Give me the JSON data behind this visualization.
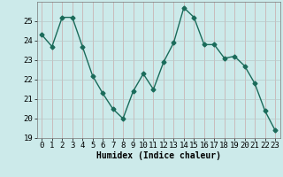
{
  "x": [
    0,
    1,
    2,
    3,
    4,
    5,
    6,
    7,
    8,
    9,
    10,
    11,
    12,
    13,
    14,
    15,
    16,
    17,
    18,
    19,
    20,
    21,
    22,
    23
  ],
  "y": [
    24.3,
    23.7,
    25.2,
    25.2,
    23.7,
    22.2,
    21.3,
    20.5,
    20.0,
    21.4,
    22.3,
    21.5,
    22.9,
    23.9,
    25.7,
    25.2,
    23.8,
    23.8,
    23.1,
    23.2,
    22.7,
    21.8,
    20.4,
    19.4
  ],
  "line_color": "#1a6b5a",
  "marker": "D",
  "marker_size": 2.5,
  "bg_color": "#cceaea",
  "grid_color_v": "#c8a8a8",
  "grid_color_h": "#b8c8c8",
  "xlabel": "Humidex (Indice chaleur)",
  "xlim": [
    -0.5,
    23.5
  ],
  "ylim": [
    19,
    26
  ],
  "yticks": [
    19,
    20,
    21,
    22,
    23,
    24,
    25
  ],
  "xticks": [
    0,
    1,
    2,
    3,
    4,
    5,
    6,
    7,
    8,
    9,
    10,
    11,
    12,
    13,
    14,
    15,
    16,
    17,
    18,
    19,
    20,
    21,
    22,
    23
  ],
  "xlabel_fontsize": 7,
  "tick_fontsize": 6.5,
  "linewidth": 1.0
}
